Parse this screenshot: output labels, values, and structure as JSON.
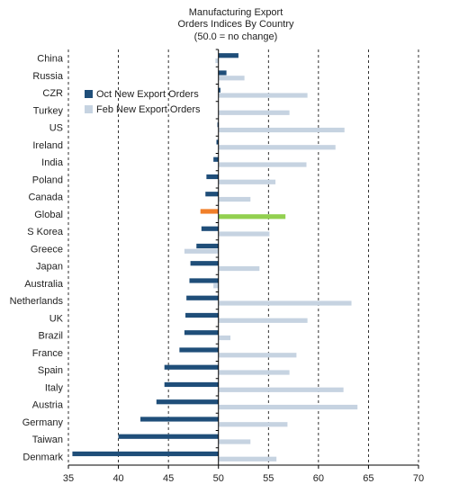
{
  "chart_data": {
    "type": "bar",
    "orientation": "horizontal",
    "title_lines": [
      "Manufacturing Export",
      "Orders Indices By Country",
      "(50.0 = no change)"
    ],
    "xlim": [
      35,
      70
    ],
    "xticks": [
      35,
      40,
      45,
      50,
      55,
      60,
      65,
      70
    ],
    "baseline": 50,
    "grid": "vertical dashed",
    "legend_position": "upper-left",
    "categories": [
      "China",
      "Russia",
      "CZR",
      "Turkey",
      "US",
      "Ireland",
      "India",
      "Poland",
      "Canada",
      "Global",
      "S Korea",
      "Greece",
      "Japan",
      "Australia",
      "Netherlands",
      "UK",
      "Brazil",
      "France",
      "Spain",
      "Italy",
      "Austria",
      "Germany",
      "Taiwan",
      "Denmark"
    ],
    "series": [
      {
        "name": "Oct New Export Orders",
        "color": "#1f4e79",
        "highlight_color": "#f07f2a",
        "values": [
          52.0,
          50.8,
          50.2,
          null,
          49.9,
          49.8,
          49.5,
          48.8,
          48.7,
          48.2,
          48.3,
          47.8,
          47.2,
          47.1,
          46.8,
          46.7,
          46.6,
          46.1,
          44.6,
          44.6,
          43.8,
          42.2,
          40.0,
          35.4
        ]
      },
      {
        "name": "Feb New Export Orders",
        "color": "#c6d3e1",
        "highlight_color": "#92d050",
        "values": [
          49.7,
          52.6,
          58.9,
          57.1,
          62.6,
          61.7,
          58.8,
          55.7,
          53.2,
          56.7,
          55.1,
          46.6,
          54.1,
          49.5,
          63.3,
          58.9,
          51.2,
          57.8,
          57.1,
          62.5,
          63.9,
          56.9,
          53.2,
          55.8
        ]
      }
    ],
    "highlight_category": "Global"
  }
}
